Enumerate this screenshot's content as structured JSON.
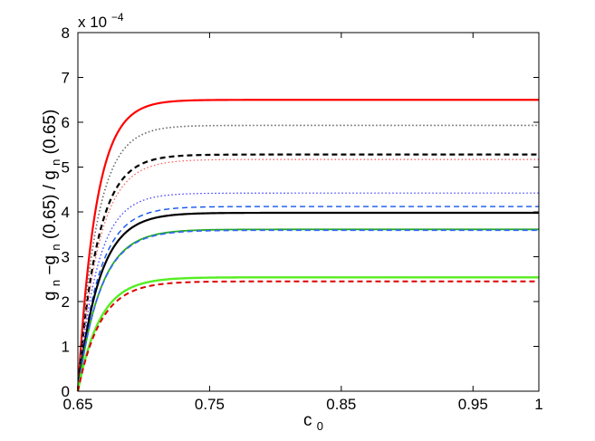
{
  "chart_data": {
    "type": "line",
    "xlabel": "c",
    "xlabel_sub": "0",
    "ylabel": {
      "g1": "g",
      "s1": "n",
      "t1": "−g",
      "s2": "n",
      "t2": "(0.65) / g",
      "s3": "n",
      "t3": "(0.65)"
    },
    "exponent_label": {
      "prefix": "x 10",
      "power": "−4"
    },
    "xlim": [
      0.65,
      1.0
    ],
    "ylim": [
      0,
      8
    ],
    "xticks": [
      0.65,
      0.75,
      0.85,
      0.95,
      1.0
    ],
    "xticklabels": [
      "0.65",
      "0.75",
      "0.85",
      "0.95",
      "1"
    ],
    "yticks": [
      0,
      1,
      2,
      3,
      4,
      5,
      6,
      7,
      8
    ],
    "yticklabels": [
      "0",
      "1",
      "2",
      "3",
      "4",
      "5",
      "6",
      "7",
      "8"
    ],
    "grid": false,
    "legend": "none",
    "series": [
      {
        "color": "#ff0000",
        "style": "solid",
        "width": 2.2,
        "plateau": 6.5,
        "tau": 0.0138
      },
      {
        "color": "#666666",
        "style": "dotted",
        "width": 1.6,
        "plateau": 5.93,
        "tau": 0.0145
      },
      {
        "color": "#000000",
        "style": "dashed",
        "width": 2.2,
        "plateau": 5.28,
        "tau": 0.015
      },
      {
        "color": "#ff5555",
        "style": "dotted",
        "width": 1.2,
        "plateau": 5.17,
        "tau": 0.0158
      },
      {
        "color": "#3333ff",
        "style": "dotted",
        "width": 1.2,
        "plateau": 4.42,
        "tau": 0.015
      },
      {
        "color": "#1155ee",
        "style": "dashed",
        "width": 1.4,
        "plateau": 4.12,
        "tau": 0.016
      },
      {
        "color": "#000000",
        "style": "solid",
        "width": 2.2,
        "plateau": 3.98,
        "tau": 0.0165
      },
      {
        "color": "#22aa22",
        "style": "solid",
        "width": 1.8,
        "plateau": 3.61,
        "tau": 0.0172
      },
      {
        "color": "#3366ff",
        "style": "dashed",
        "width": 1.6,
        "plateau": 3.59,
        "tau": 0.0172
      },
      {
        "color": "#55ee22",
        "style": "solid",
        "width": 2.4,
        "plateau": 2.54,
        "tau": 0.0168
      },
      {
        "color": "#dd0000",
        "style": "dashed",
        "width": 2.0,
        "plateau": 2.45,
        "tau": 0.0172
      }
    ]
  }
}
